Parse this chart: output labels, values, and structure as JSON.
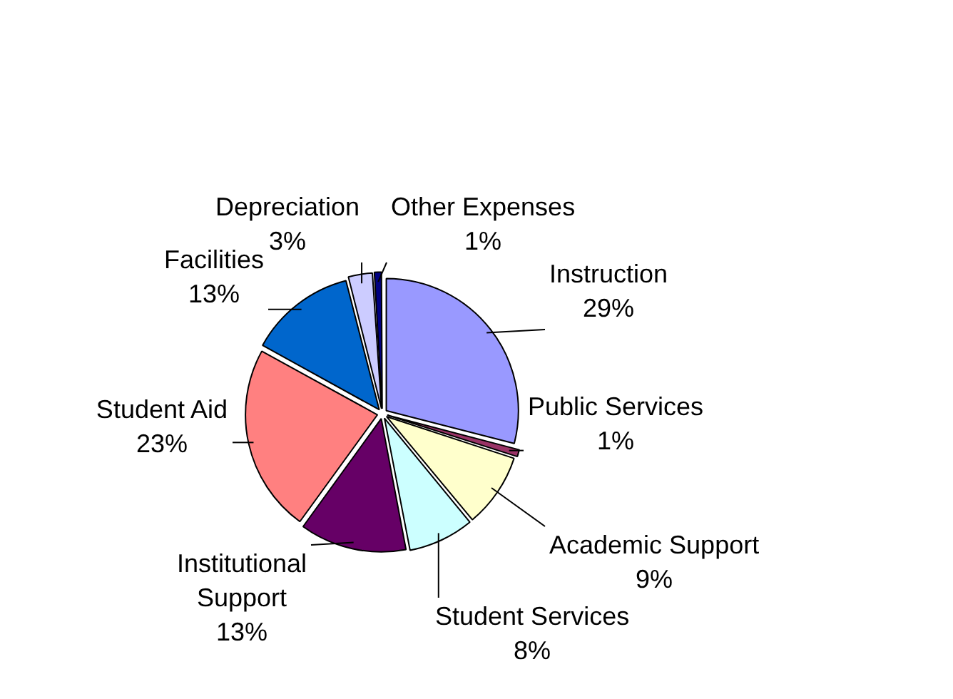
{
  "chart_data": {
    "type": "pie",
    "categories": [
      "Instruction",
      "Public Services",
      "Academic Support",
      "Student Services",
      "Institutional Support",
      "Student Aid",
      "Facilities",
      "Depreciation",
      "Other Expenses"
    ],
    "values": [
      29,
      1,
      9,
      8,
      13,
      23,
      13,
      3,
      1
    ],
    "value_labels": [
      "29%",
      "1%",
      "9%",
      "8%",
      "13%",
      "23%",
      "13%",
      "3%",
      "1%"
    ],
    "colors": [
      "#9999ff",
      "#993366",
      "#ffffcc",
      "#ccffff",
      "#660066",
      "#ff8080",
      "#0066cc",
      "#ccccff",
      "#000080"
    ],
    "legend": false
  }
}
